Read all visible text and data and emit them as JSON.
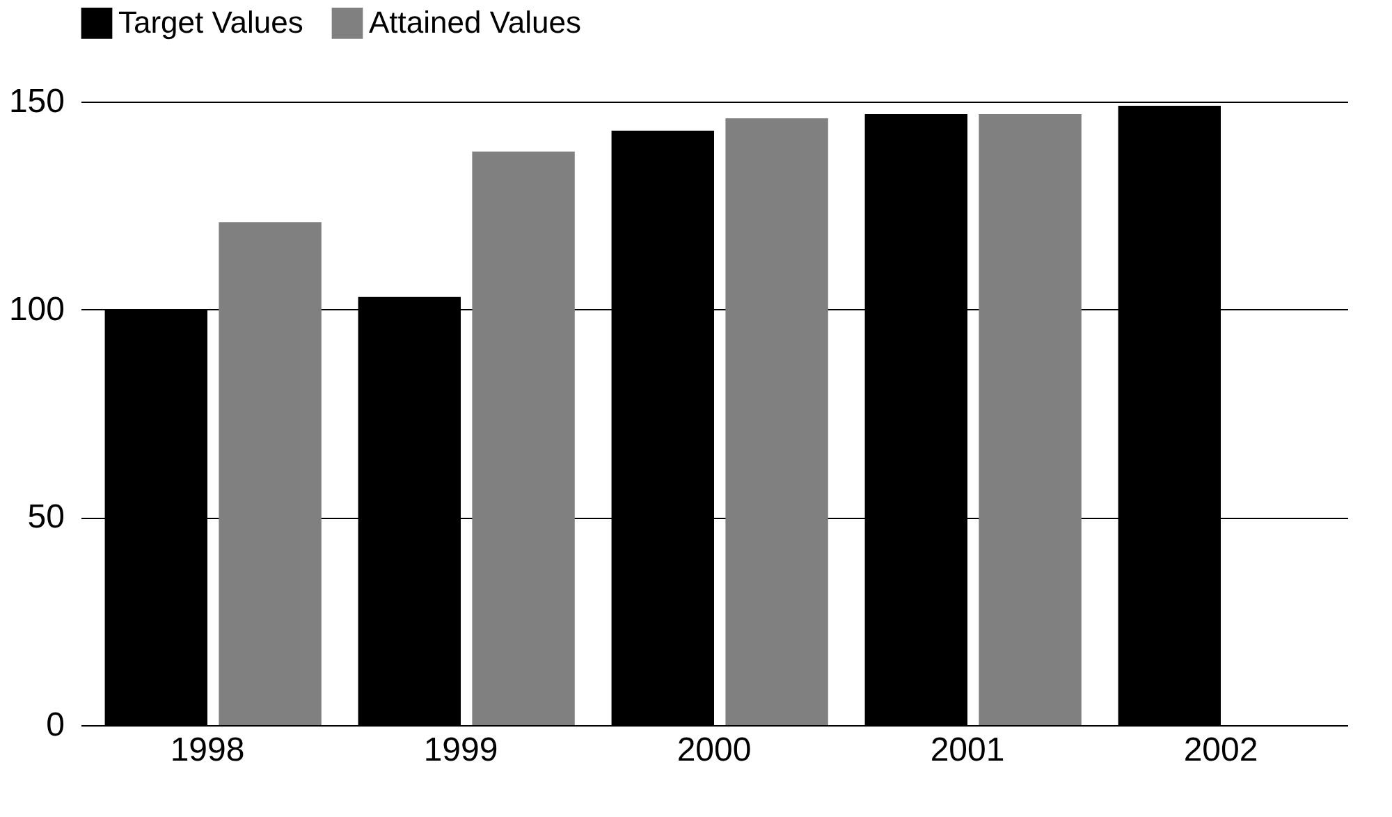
{
  "chart_data": {
    "type": "bar",
    "categories": [
      "1998",
      "1999",
      "2000",
      "2001",
      "2002"
    ],
    "series": [
      {
        "name": "Target Values",
        "color": "#000000",
        "values": [
          100,
          103,
          143,
          147,
          149
        ]
      },
      {
        "name": "Attained Values",
        "color": "#808080",
        "values": [
          121,
          138,
          146,
          147,
          null
        ]
      }
    ],
    "ylim": [
      0,
      150
    ],
    "yticks": [
      0,
      50,
      100,
      150
    ],
    "grid": "y",
    "legend": "top left"
  }
}
